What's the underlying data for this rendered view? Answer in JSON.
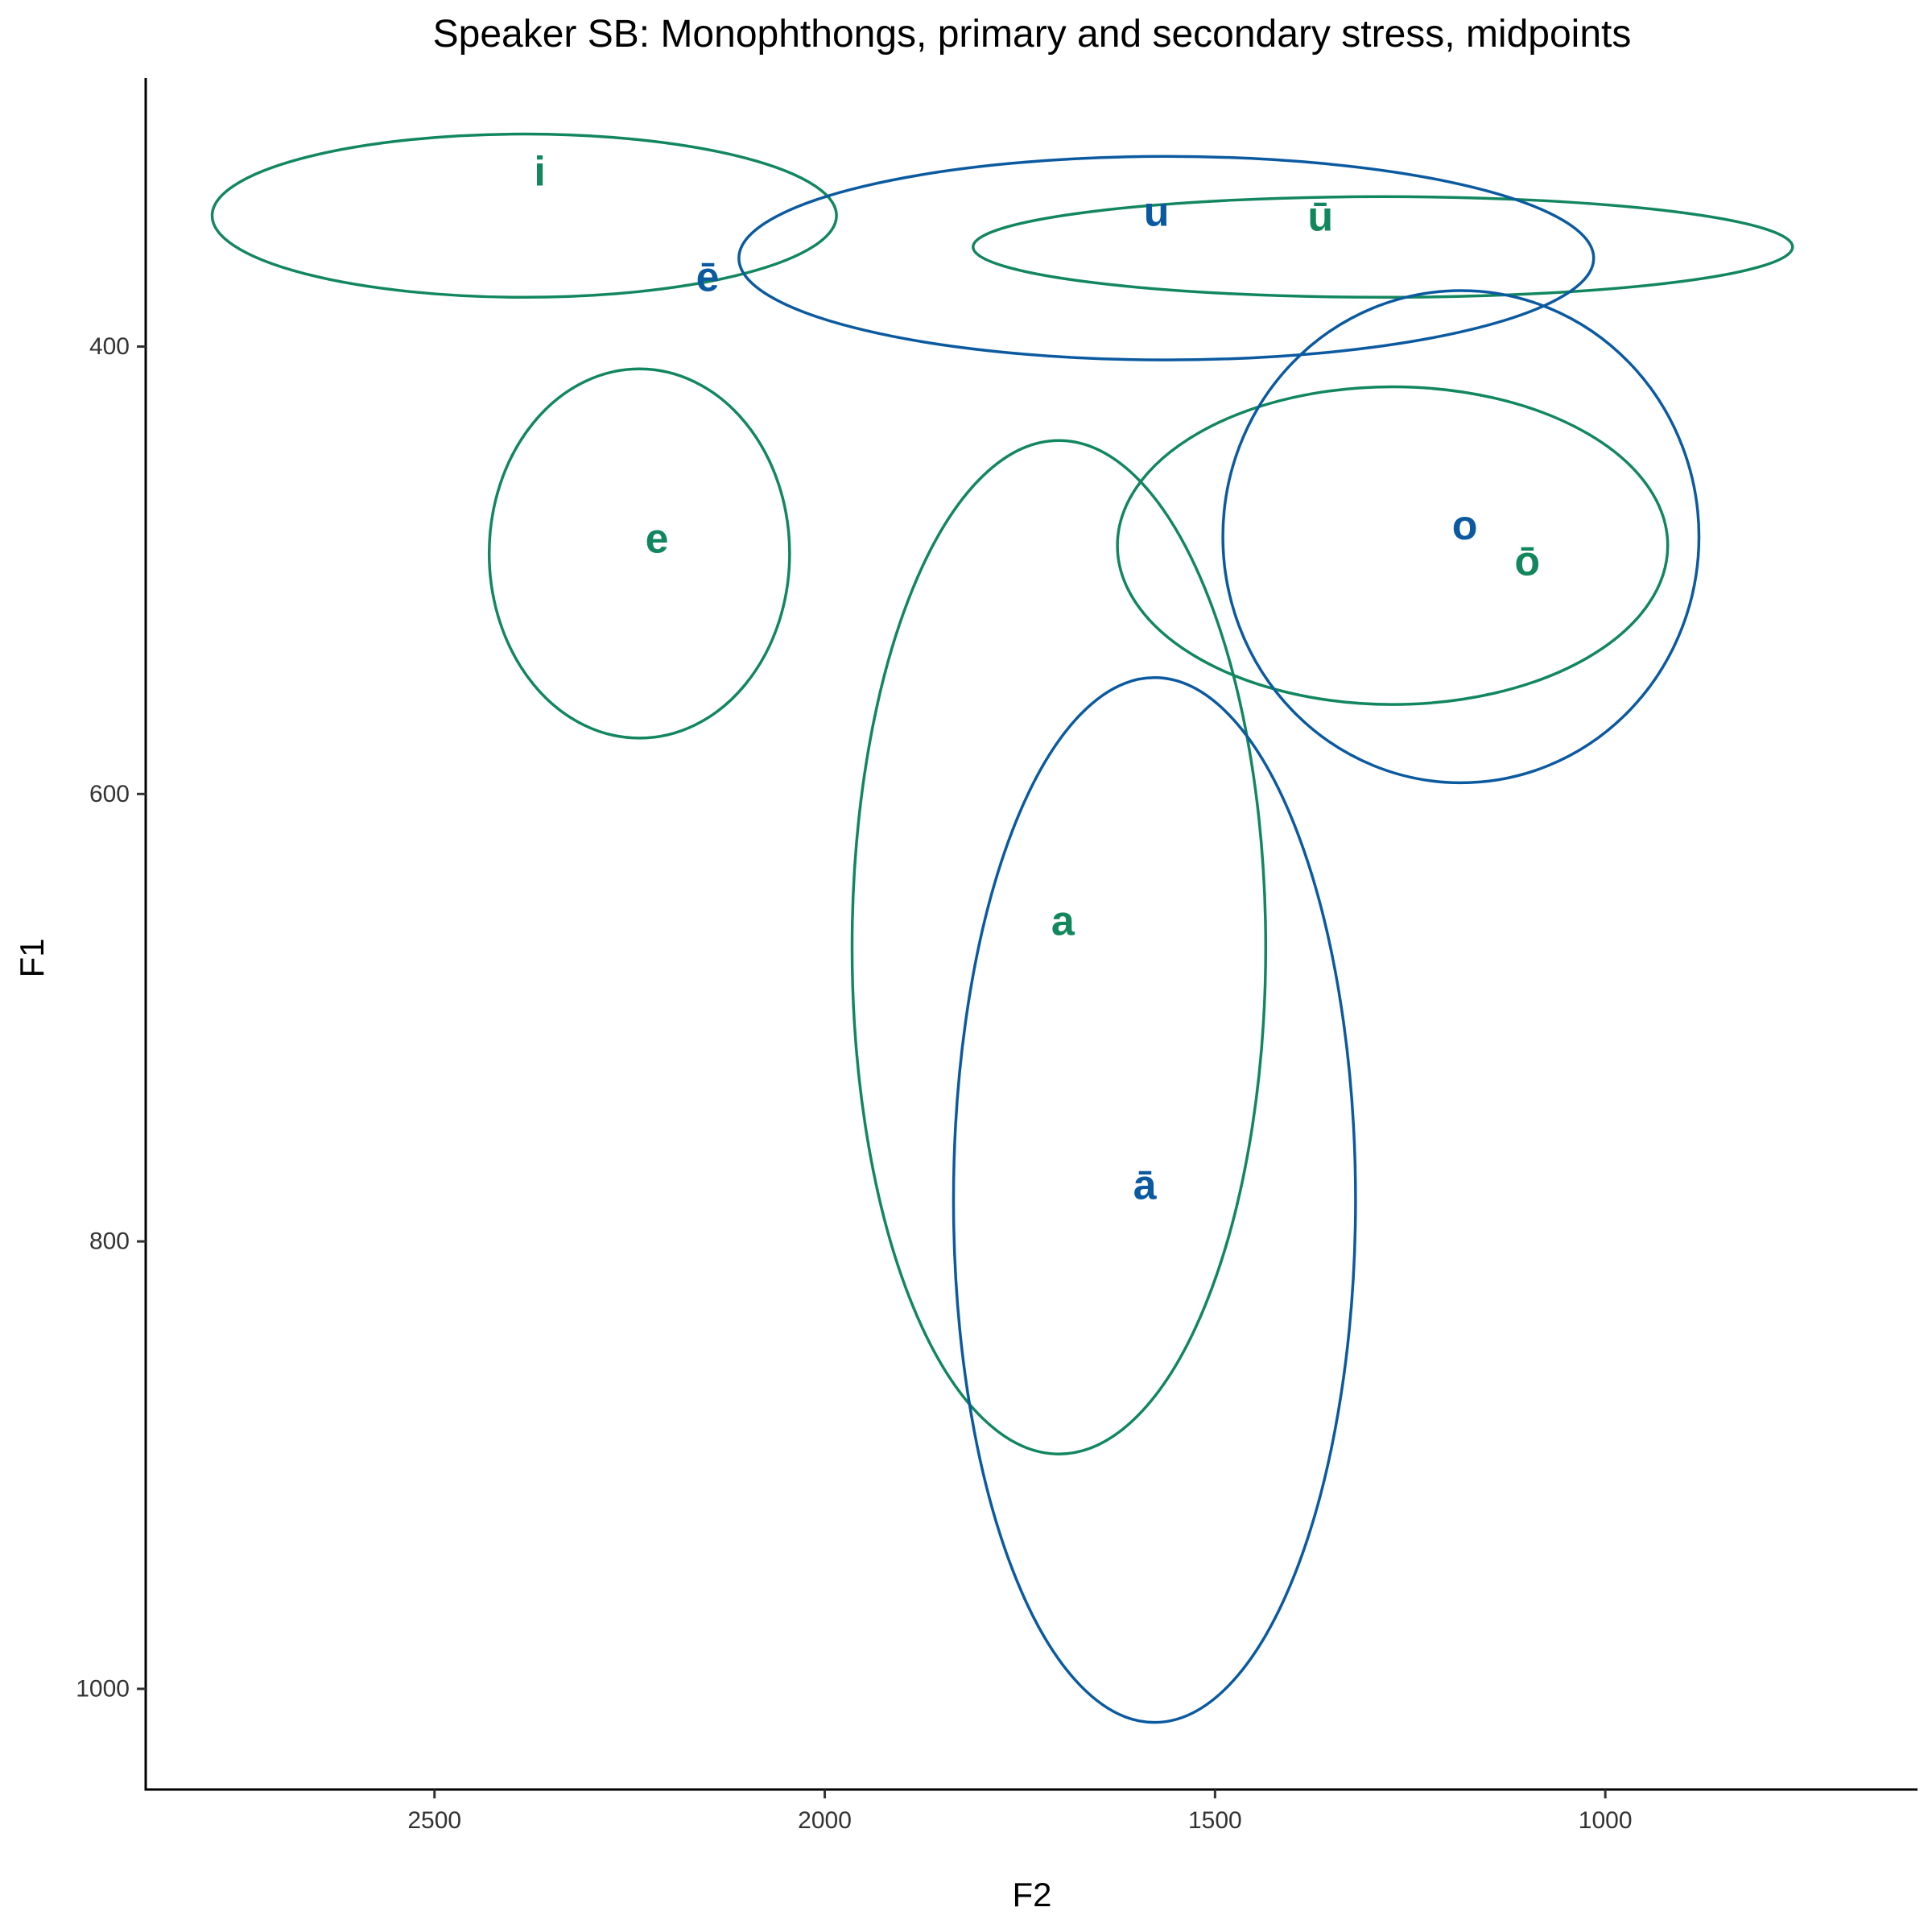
{
  "chart_data": {
    "type": "scatter",
    "title": "Speaker SB: Monophthongs, primary and secondary stress, midpoints",
    "xlabel": "F2",
    "ylabel": "F1",
    "x_reversed": true,
    "y_reversed": true,
    "xlim": [
      2870,
      600
    ],
    "ylim": [
      280,
      1045
    ],
    "x_ticks": [
      2500,
      2000,
      1500,
      1000
    ],
    "y_ticks": [
      400,
      600,
      800,
      1000
    ],
    "grid": false,
    "legend": "none",
    "colors": {
      "green": "#12875E",
      "blue": "#0B5AA0"
    },
    "series": [
      {
        "points": [
          {
            "label": "i",
            "F2": 2365,
            "F1": 322,
            "color": "green"
          },
          {
            "label": "e",
            "F2": 2215,
            "F1": 486,
            "color": "green"
          },
          {
            "label": "a",
            "F2": 1695,
            "F1": 657,
            "color": "green"
          },
          {
            "label": "ū",
            "F2": 1365,
            "F1": 342,
            "color": "green"
          },
          {
            "label": "ō",
            "F2": 1100,
            "F1": 496,
            "color": "green"
          },
          {
            "label": "ē",
            "F2": 2150,
            "F1": 369,
            "color": "blue"
          },
          {
            "label": "u",
            "F2": 1575,
            "F1": 340,
            "color": "blue"
          },
          {
            "label": "ā",
            "F2": 1590,
            "F1": 775,
            "color": "blue"
          },
          {
            "label": "o",
            "F2": 1180,
            "F1": 480,
            "color": "blue"
          }
        ]
      }
    ],
    "ellipses": [
      {
        "label": "i",
        "color": "green",
        "F2_min": 2785,
        "F2_max": 1985,
        "F1_min": 305,
        "F1_max": 378
      },
      {
        "label": "e",
        "color": "green",
        "F2_min": 2430,
        "F2_max": 2045,
        "F1_min": 410,
        "F1_max": 575
      },
      {
        "label": "a",
        "color": "green",
        "F2_min": 1965,
        "F2_max": 1435,
        "F1_min": 442,
        "F1_max": 895
      },
      {
        "label": "ū",
        "color": "green",
        "F2_min": 1810,
        "F2_max": 760,
        "F1_min": 333,
        "F1_max": 378
      },
      {
        "label": "ō",
        "color": "green",
        "F2_min": 1625,
        "F2_max": 920,
        "F1_min": 418,
        "F1_max": 560
      },
      {
        "label": "u",
        "color": "blue",
        "F2_min": 2110,
        "F2_max": 1015,
        "F1_min": 315,
        "F1_max": 406
      },
      {
        "label": "ā",
        "color": "blue",
        "F2_min": 1835,
        "F2_max": 1320,
        "F1_min": 548,
        "F1_max": 1015
      },
      {
        "label": "o",
        "color": "blue",
        "F2_min": 1490,
        "F2_max": 880,
        "F1_min": 375,
        "F1_max": 595
      }
    ]
  }
}
